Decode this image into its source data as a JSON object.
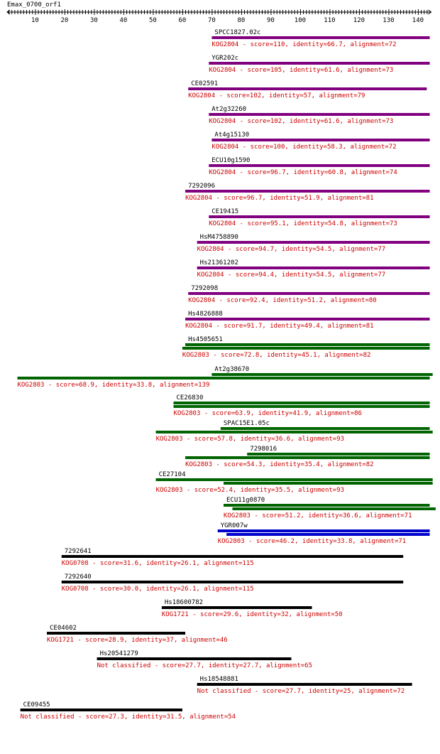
{
  "query": {
    "name": "Emax_0700_orf1",
    "length": 143
  },
  "axis": {
    "ticks": [
      10,
      20,
      30,
      40,
      50,
      60,
      70,
      80,
      90,
      100,
      110,
      120,
      130,
      140
    ]
  },
  "colors": {
    "purple": "#800080",
    "green": "#006400",
    "blue": "#0000cc",
    "black": "#000000",
    "label": "#000000",
    "desc": "#cc0000"
  },
  "hits": [
    {
      "name": "SPCC1827.02c",
      "desc": "KOG2804 - score=110, identity=66.7, alignment=72",
      "color": "purple",
      "segments": [
        [
          70,
          143
        ]
      ]
    },
    {
      "name": "YGR202c",
      "desc": "KOG2804 - score=105, identity=61.6, alignment=73",
      "color": "purple",
      "segments": [
        [
          69,
          143
        ]
      ]
    },
    {
      "name": "CE02591",
      "desc": "KOG2804 - score=102, identity=57, alignment=79",
      "color": "purple",
      "segments": [
        [
          62,
          142
        ]
      ]
    },
    {
      "name": "At2g32260",
      "desc": "KOG2804 - score=102, identity=61.6, alignment=73",
      "color": "purple",
      "segments": [
        [
          69,
          143
        ]
      ]
    },
    {
      "name": "At4g15130",
      "desc": "KOG2804 - score=100, identity=58.3, alignment=72",
      "color": "purple",
      "segments": [
        [
          70,
          143
        ]
      ]
    },
    {
      "name": "ECU10g1590",
      "desc": "KOG2804 - score=96.7, identity=60.8, alignment=74",
      "color": "purple",
      "segments": [
        [
          69,
          143
        ]
      ]
    },
    {
      "name": "7292096",
      "desc": "KOG2804 - score=96.7, identity=51.9, alignment=81",
      "color": "purple",
      "segments": [
        [
          61,
          143
        ]
      ]
    },
    {
      "name": "CE19415",
      "desc": "KOG2804 - score=95.1, identity=54.8, alignment=73",
      "color": "purple",
      "segments": [
        [
          69,
          143
        ]
      ]
    },
    {
      "name": "HsM4758890",
      "desc": "KOG2804 - score=94.7, identity=54.5, alignment=77",
      "color": "purple",
      "segments": [
        [
          65,
          143
        ]
      ]
    },
    {
      "name": "Hs21361202",
      "desc": "KOG2804 - score=94.4, identity=54.5, alignment=77",
      "color": "purple",
      "segments": [
        [
          65,
          143
        ]
      ]
    },
    {
      "name": "7292098",
      "desc": "KOG2804 - score=92.4, identity=51.2, alignment=80",
      "color": "purple",
      "segments": [
        [
          62,
          143
        ]
      ]
    },
    {
      "name": "Hs4826888",
      "desc": "KOG2804 - score=91.7, identity=49.4, alignment=81",
      "color": "purple",
      "segments": [
        [
          61,
          143
        ]
      ]
    },
    {
      "name": "Hs4505651",
      "desc": "KOG2803 - score=72.8, identity=45.1, alignment=82",
      "color": "green",
      "segments": [
        [
          61,
          143
        ],
        [
          60,
          143
        ]
      ]
    },
    {
      "name": "At2g38670",
      "desc": "KOG2803 - score=68.9, identity=33.8, alignment=139",
      "color": "green",
      "segments": [
        [
          70,
          144
        ],
        [
          4,
          143
        ]
      ]
    },
    {
      "name": "CE26830",
      "desc": "KOG2803 - score=63.9, identity=41.9, alignment=86",
      "color": "green",
      "segments": [
        [
          57,
          143
        ],
        [
          57,
          143
        ]
      ]
    },
    {
      "name": "SPAC15E1.05c",
      "desc": "KOG2803 - score=57.8, identity=36.6, alignment=93",
      "color": "green",
      "segments": [
        [
          73,
          143
        ],
        [
          51,
          144
        ]
      ]
    },
    {
      "name": "7298016",
      "desc": "KOG2803 - score=54.3, identity=35.4, alignment=82",
      "color": "green",
      "segments": [
        [
          82,
          143
        ],
        [
          61,
          143
        ]
      ]
    },
    {
      "name": "CE27104",
      "desc": "KOG2803 - score=52.4, identity=35.5, alignment=93",
      "color": "green",
      "segments": [
        [
          51,
          144
        ],
        [
          74,
          144
        ]
      ]
    },
    {
      "name": "ECU11g0870",
      "desc": "KOG2803 - score=51.2, identity=36.6, alignment=71",
      "color": "green",
      "segments": [
        [
          74,
          143
        ],
        [
          77,
          145
        ]
      ]
    },
    {
      "name": "YGR007w",
      "desc": "KOG2803 - score=46.2, identity=33.8, alignment=71",
      "color": "blue",
      "segments": [
        [
          72,
          143
        ],
        [
          75,
          143
        ]
      ]
    },
    {
      "name": "7292641",
      "desc": "KOG0708 - score=31.6, identity=26.1, alignment=115",
      "color": "black",
      "segments": [
        [
          19,
          134
        ]
      ]
    },
    {
      "name": "7292640",
      "desc": "KOG0708 - score=30.0, identity=26.1, alignment=115",
      "color": "black",
      "segments": [
        [
          19,
          134
        ]
      ]
    },
    {
      "name": "Hs18600782",
      "desc": "KOG1721 - score=29.6, identity=32, alignment=50",
      "color": "black",
      "segments": [
        [
          53,
          103
        ]
      ]
    },
    {
      "name": "CE04602",
      "desc": "KOG1721 - score=28.9, identity=37, alignment=46",
      "color": "black",
      "segments": [
        [
          14,
          60
        ]
      ]
    },
    {
      "name": "Hs20541279",
      "desc": "Not classified - score=27.7, identity=27.7, alignment=65",
      "color": "black",
      "segments": [
        [
          31,
          96
        ]
      ]
    },
    {
      "name": "Hs18548881",
      "desc": "Not classified - score=27.7, identity=25, alignment=72",
      "color": "black",
      "segments": [
        [
          65,
          137
        ]
      ]
    },
    {
      "name": "CE09455",
      "desc": "Not classified - score=27.3, identity=31.5, alignment=54",
      "color": "black",
      "segments": [
        [
          5,
          59
        ]
      ]
    }
  ]
}
